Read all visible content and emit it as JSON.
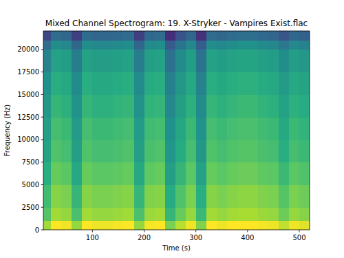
{
  "chart_data": {
    "type": "heatmap",
    "title": "Mixed Channel Spectrogram: 19. X-Stryker - Vampires Exist.flac",
    "x_label": "Time (s)",
    "y_label": "Frequency (Hz)",
    "xlim": [
      5,
      520
    ],
    "ylim": [
      0,
      22050
    ],
    "xticks": [
      100,
      200,
      300,
      400,
      500
    ],
    "yticks": [
      0,
      2500,
      5000,
      7500,
      10000,
      12500,
      15000,
      17500,
      20000
    ],
    "x_edges": [
      5,
      20,
      40,
      60,
      80,
      100,
      120,
      140,
      160,
      180,
      200,
      220,
      240,
      260,
      280,
      300,
      320,
      340,
      360,
      380,
      400,
      420,
      440,
      460,
      480,
      500,
      520
    ],
    "y_edges": [
      0,
      1000,
      2500,
      5000,
      7500,
      10000,
      12500,
      15000,
      17500,
      20000,
      21000,
      22050
    ],
    "color_range": [
      0,
      90
    ],
    "cells": [
      [
        78,
        90,
        88,
        76,
        90,
        88,
        88,
        89,
        90,
        76,
        89,
        90,
        72,
        81,
        88,
        73,
        90,
        88,
        90,
        91,
        91,
        89,
        88,
        82,
        88,
        86
      ],
      [
        66,
        78,
        76,
        64,
        78,
        76,
        76,
        77,
        78,
        64,
        77,
        78,
        60,
        69,
        76,
        61,
        78,
        76,
        78,
        79,
        79,
        77,
        76,
        70,
        76,
        74
      ],
      [
        62,
        74,
        72,
        60,
        74,
        72,
        72,
        73,
        74,
        60,
        73,
        74,
        56,
        65,
        72,
        57,
        74,
        72,
        74,
        75,
        75,
        73,
        72,
        66,
        72,
        70
      ],
      [
        57,
        69,
        67,
        55,
        69,
        67,
        67,
        68,
        69,
        55,
        68,
        69,
        51,
        60,
        67,
        52,
        69,
        67,
        69,
        70,
        70,
        68,
        67,
        61,
        67,
        65
      ],
      [
        53,
        65,
        63,
        51,
        65,
        63,
        63,
        64,
        65,
        51,
        64,
        65,
        47,
        56,
        63,
        48,
        65,
        63,
        65,
        66,
        66,
        64,
        63,
        57,
        63,
        61
      ],
      [
        51,
        63,
        61,
        49,
        63,
        61,
        61,
        62,
        63,
        49,
        62,
        63,
        45,
        54,
        61,
        46,
        63,
        61,
        63,
        64,
        64,
        62,
        61,
        55,
        61,
        59
      ],
      [
        48,
        60,
        58,
        46,
        60,
        58,
        58,
        59,
        60,
        46,
        59,
        60,
        42,
        51,
        58,
        43,
        60,
        58,
        60,
        61,
        61,
        59,
        58,
        52,
        58,
        56
      ],
      [
        45,
        57,
        55,
        43,
        57,
        55,
        55,
        56,
        57,
        43,
        56,
        57,
        39,
        48,
        55,
        40,
        57,
        55,
        57,
        58,
        58,
        56,
        55,
        49,
        55,
        53
      ],
      [
        40,
        52,
        50,
        38,
        52,
        50,
        50,
        51,
        52,
        38,
        51,
        52,
        34,
        43,
        50,
        35,
        52,
        50,
        52,
        53,
        53,
        51,
        50,
        44,
        50,
        48
      ],
      [
        32,
        44,
        42,
        30,
        44,
        42,
        42,
        43,
        44,
        30,
        43,
        44,
        26,
        35,
        42,
        27,
        44,
        42,
        44,
        45,
        45,
        43,
        42,
        36,
        42,
        40
      ],
      [
        20,
        32,
        30,
        18,
        32,
        30,
        30,
        31,
        32,
        18,
        31,
        32,
        14,
        23,
        30,
        15,
        32,
        30,
        32,
        33,
        33,
        31,
        30,
        24,
        30,
        28
      ]
    ]
  }
}
